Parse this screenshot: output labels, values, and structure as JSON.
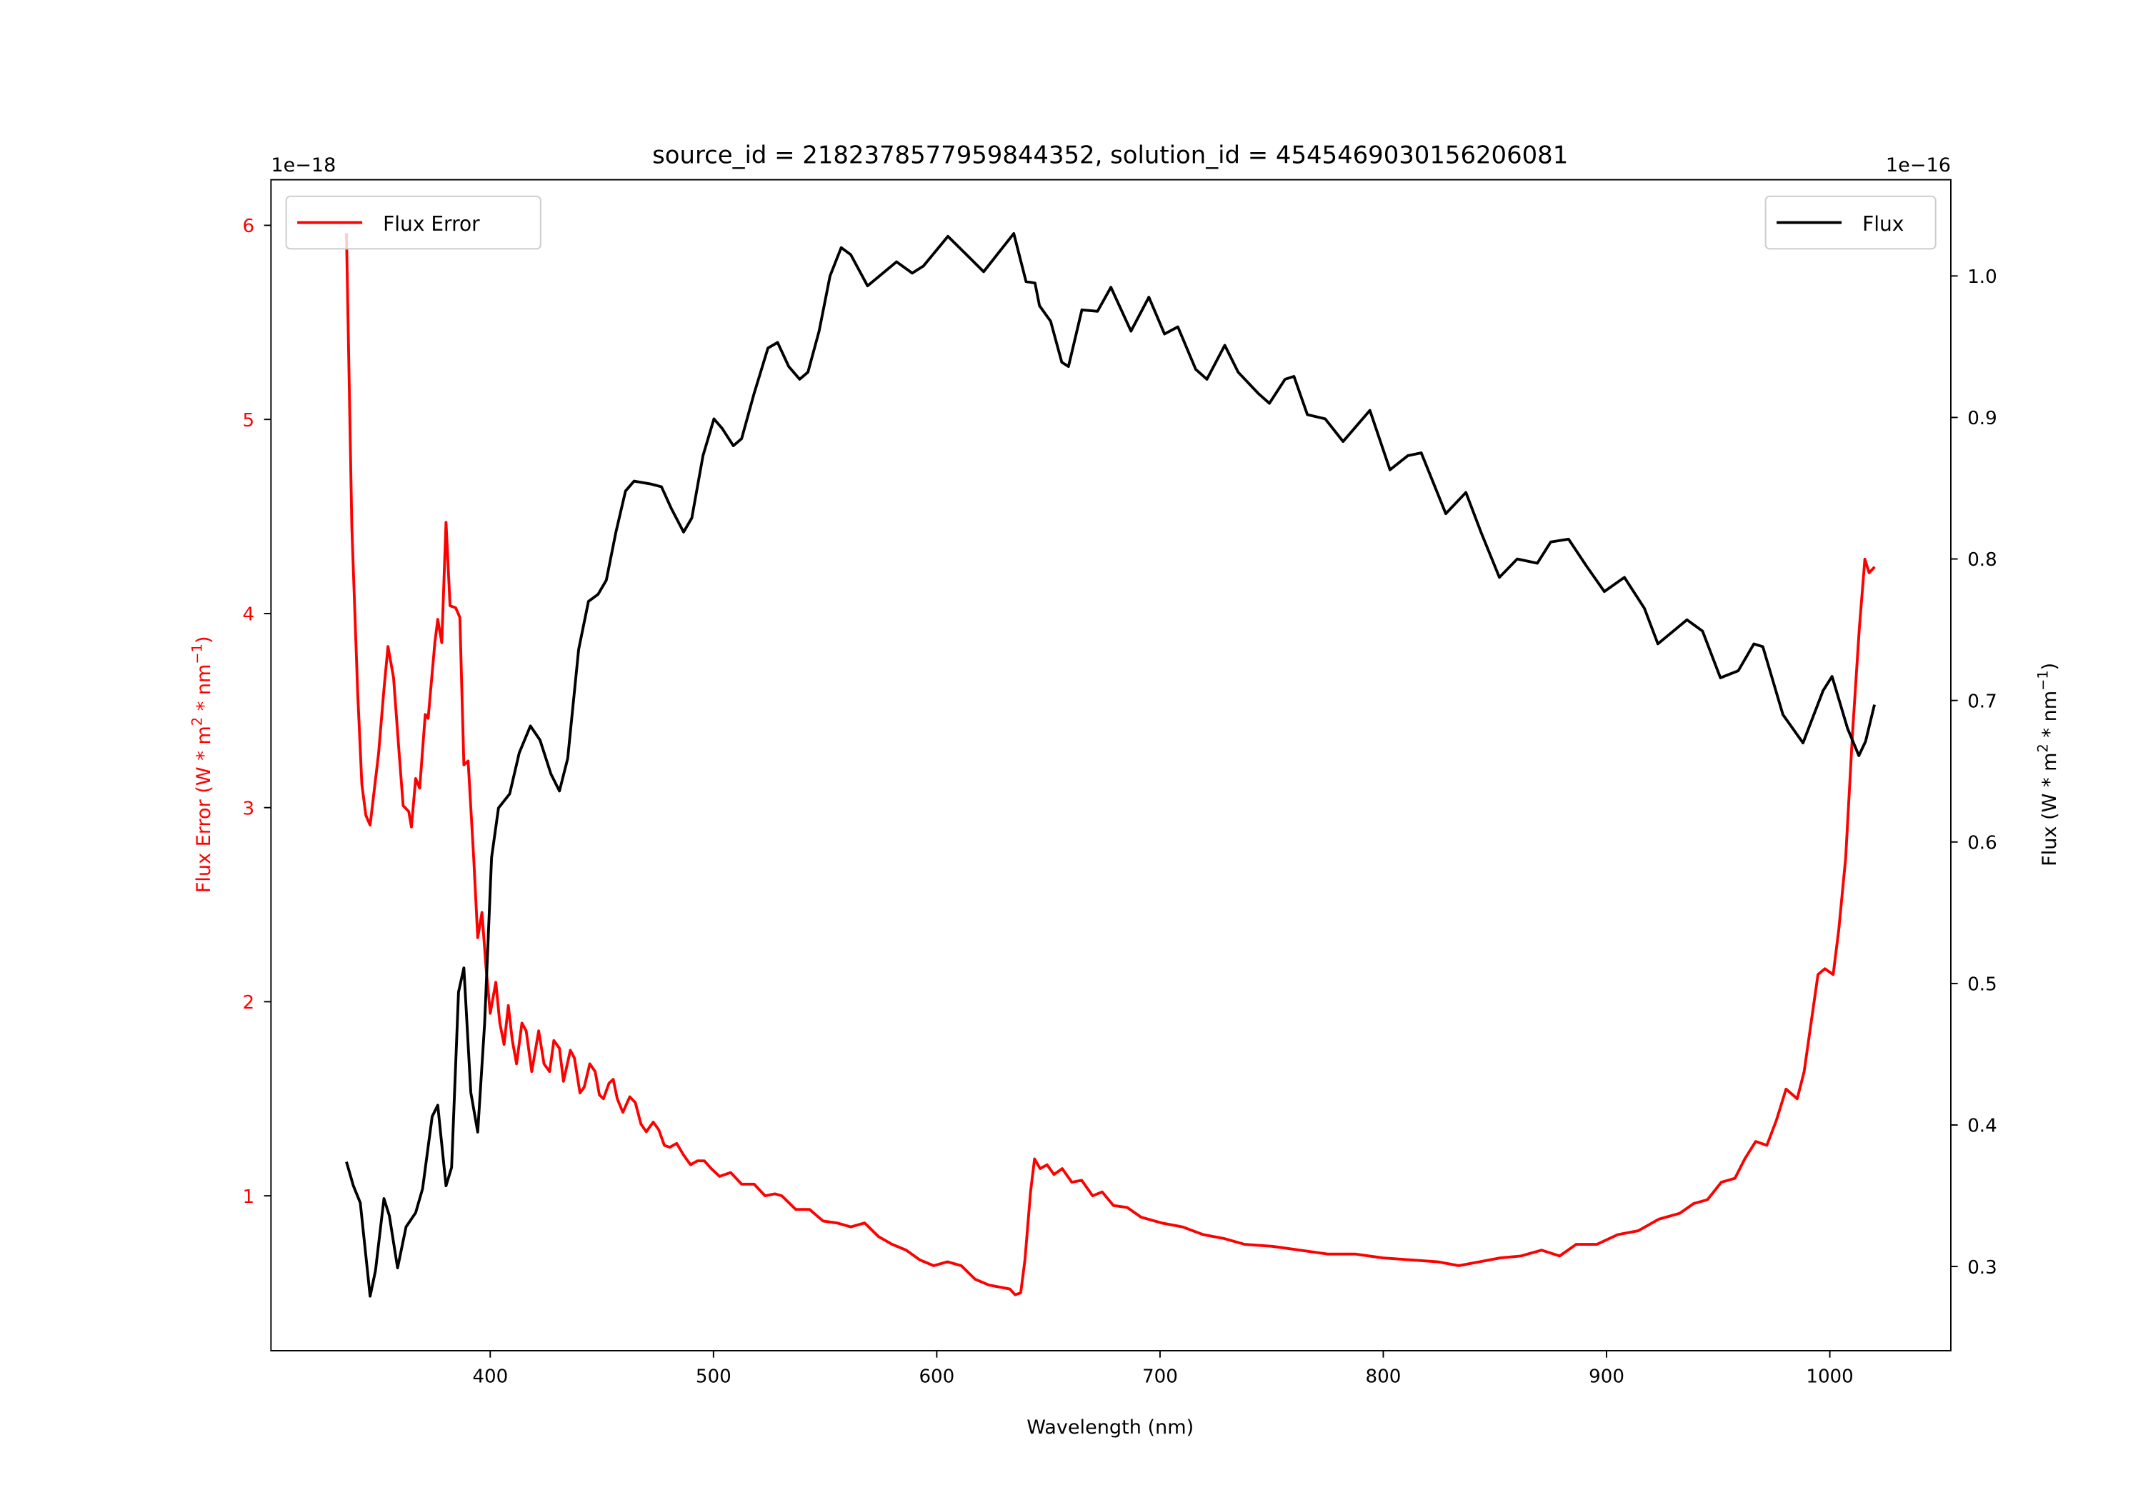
{
  "chart_data": {
    "type": "line",
    "title": "source_id = 2182378577959844352, solution_id = 4545469030156206081",
    "xlabel": "Wavelength (nm)",
    "ylabel_left": "Flux Error (W * m^2 * nm^-1)",
    "ylabel_right": "Flux (W * m^2 * nm^-1)",
    "left_offset_text": "1e−18",
    "right_offset_text": "1e−16",
    "xlim": [
      301.8,
      1054.2
    ],
    "ylim_left": [
      0.202,
      6.235
    ],
    "ylim_right": [
      0.2405,
      1.068
    ],
    "xticks": [
      400,
      500,
      600,
      700,
      800,
      900,
      1000
    ],
    "yticks_left": [
      1,
      2,
      3,
      4,
      5,
      6
    ],
    "yticks_right": [
      0.3,
      0.4,
      0.5,
      0.6,
      0.7,
      0.8,
      0.9,
      1.0
    ],
    "grid": false,
    "legend_left": {
      "label": "Flux Error",
      "placement": "upper-left"
    },
    "legend_right": {
      "label": "Flux",
      "placement": "upper-right"
    },
    "colors": {
      "flux_error": "#ff0000",
      "flux": "#000000"
    },
    "series": [
      {
        "name": "Flux Error",
        "axis": "left",
        "unit_scale": "1e-18",
        "x": [
          335.6,
          338,
          340.6,
          342.5,
          344.3,
          346.2,
          350,
          352.4,
          354.2,
          356.7,
          359.2,
          361,
          363.5,
          364.7,
          366.6,
          368.4,
          370.9,
          372.2,
          375.2,
          376.5,
          378.3,
          380.2,
          382,
          384.5,
          386.4,
          388.2,
          390.1,
          392.6,
          394.4,
          396.3,
          398.1,
          400,
          402.5,
          404.3,
          406.2,
          408.1,
          409.9,
          411.8,
          414.2,
          416.1,
          418.6,
          421.7,
          424.1,
          426.6,
          428.5,
          431,
          432.8,
          435.9,
          437.7,
          440.2,
          442.1,
          444.6,
          447,
          448.9,
          450.7,
          453.2,
          455.1,
          456.9,
          459.4,
          462.5,
          465,
          467.5,
          469.9,
          473,
          475.5,
          478,
          480.4,
          483.5,
          486.6,
          489.7,
          492.8,
          495.9,
          499,
          502.7,
          507.7,
          512.6,
          518.2,
          523.1,
          527.5,
          530.6,
          536.8,
          543,
          549.1,
          555.3,
          561.5,
          567.7,
          573.9,
          580,
          586.3,
          592.4,
          598.6,
          604.8,
          611,
          617.2,
          623.4,
          632.7,
          635.1,
          637.6,
          639.5,
          642,
          643.8,
          646.3,
          649.4,
          652.5,
          656.2,
          660.5,
          664.9,
          669.8,
          674.1,
          679.1,
          685.3,
          691.5,
          700.7,
          710,
          719.3,
          728.6,
          737.9,
          750.2,
          762.6,
          775,
          787.4,
          799.8,
          812.1,
          824.5,
          833.8,
          843.1,
          852.4,
          861.6,
          870.9,
          879,
          886.4,
          895.7,
          905,
          914.2,
          923.5,
          932.8,
          939,
          945.2,
          951.4,
          957.5,
          961.9,
          966.8,
          971.8,
          976.1,
          980.4,
          985.4,
          988.5,
          991.6,
          994.7,
          997.8,
          1001.5,
          1004,
          1007.1,
          1010.2,
          1013.2,
          1015.7,
          1017.6,
          1020.1
        ],
        "y": [
          5.96,
          4.45,
          3.6,
          3.12,
          2.96,
          2.91,
          3.28,
          3.61,
          3.83,
          3.67,
          3.28,
          3.01,
          2.98,
          2.9,
          3.15,
          3.1,
          3.48,
          3.46,
          3.85,
          3.97,
          3.85,
          4.47,
          4.04,
          4.03,
          3.98,
          3.22,
          3.24,
          2.74,
          2.33,
          2.46,
          2.18,
          1.94,
          2.1,
          1.89,
          1.78,
          1.98,
          1.8,
          1.68,
          1.89,
          1.85,
          1.64,
          1.85,
          1.68,
          1.64,
          1.8,
          1.76,
          1.59,
          1.75,
          1.71,
          1.53,
          1.56,
          1.68,
          1.64,
          1.52,
          1.5,
          1.58,
          1.6,
          1.5,
          1.43,
          1.51,
          1.48,
          1.37,
          1.33,
          1.38,
          1.34,
          1.26,
          1.25,
          1.27,
          1.21,
          1.16,
          1.18,
          1.18,
          1.14,
          1.1,
          1.12,
          1.06,
          1.06,
          1.0,
          1.01,
          1.0,
          0.93,
          0.93,
          0.87,
          0.86,
          0.84,
          0.86,
          0.79,
          0.75,
          0.72,
          0.67,
          0.64,
          0.66,
          0.64,
          0.57,
          0.54,
          0.52,
          0.49,
          0.5,
          0.67,
          1.02,
          1.19,
          1.14,
          1.16,
          1.11,
          1.14,
          1.07,
          1.08,
          1.0,
          1.02,
          0.95,
          0.94,
          0.89,
          0.86,
          0.84,
          0.8,
          0.78,
          0.75,
          0.74,
          0.72,
          0.7,
          0.7,
          0.68,
          0.67,
          0.66,
          0.64,
          0.66,
          0.68,
          0.69,
          0.72,
          0.69,
          0.75,
          0.75,
          0.8,
          0.82,
          0.88,
          0.91,
          0.96,
          0.98,
          1.07,
          1.09,
          1.19,
          1.28,
          1.26,
          1.39,
          1.55,
          1.5,
          1.64,
          1.89,
          2.14,
          2.17,
          2.14,
          2.37,
          2.74,
          3.39,
          3.92,
          4.28,
          4.21,
          4.24
        ]
      },
      {
        "name": "Flux",
        "axis": "right",
        "unit_scale": "1e-16",
        "x": [
          335.6,
          338.7,
          341.8,
          346.2,
          348.6,
          352.4,
          354.8,
          358.5,
          362.3,
          366.6,
          369.7,
          374,
          376.5,
          380.2,
          382.7,
          385.8,
          388.2,
          391.3,
          394.4,
          397.5,
          400.6,
          403.7,
          408.7,
          413,
          418,
          422.3,
          427.2,
          431,
          434.7,
          439.6,
          444,
          448.3,
          452,
          456.3,
          460.6,
          464.4,
          471.8,
          476.7,
          481,
          486.6,
          490.3,
          495.3,
          500.2,
          504,
          508.9,
          512.6,
          518.2,
          524.4,
          528.7,
          533.7,
          538.6,
          542.3,
          547.3,
          552.2,
          557.2,
          561.5,
          569,
          582,
          589,
          594,
          605,
          614,
          621,
          634.5,
          640,
          644,
          646,
          651,
          656,
          659,
          665,
          672,
          678,
          687,
          695,
          702,
          708,
          716,
          721,
          729,
          735,
          744,
          749,
          756,
          760,
          766,
          774,
          782,
          794,
          803,
          811,
          817,
          828,
          837,
          844,
          852,
          860,
          869,
          875,
          883,
          891,
          899,
          908,
          917,
          923,
          936,
          943,
          951,
          959,
          966,
          970,
          979,
          988,
          997,
          1001,
          1008,
          1013,
          1016,
          1020
        ],
        "y": [
          0.374,
          0.357,
          0.345,
          0.279,
          0.297,
          0.348,
          0.336,
          0.299,
          0.328,
          0.338,
          0.355,
          0.406,
          0.414,
          0.357,
          0.37,
          0.494,
          0.511,
          0.423,
          0.395,
          0.472,
          0.589,
          0.624,
          0.634,
          0.663,
          0.682,
          0.672,
          0.648,
          0.636,
          0.659,
          0.736,
          0.77,
          0.775,
          0.785,
          0.819,
          0.848,
          0.855,
          0.853,
          0.851,
          0.836,
          0.819,
          0.829,
          0.873,
          0.899,
          0.892,
          0.88,
          0.885,
          0.917,
          0.949,
          0.953,
          0.936,
          0.927,
          0.932,
          0.961,
          1.0,
          1.02,
          1.015,
          0.993,
          1.01,
          1.002,
          1.007,
          1.028,
          1.014,
          1.003,
          1.03,
          0.996,
          0.995,
          0.979,
          0.968,
          0.939,
          0.936,
          0.976,
          0.975,
          0.992,
          0.961,
          0.985,
          0.959,
          0.964,
          0.934,
          0.927,
          0.951,
          0.932,
          0.917,
          0.91,
          0.927,
          0.929,
          0.902,
          0.899,
          0.883,
          0.905,
          0.863,
          0.873,
          0.875,
          0.832,
          0.847,
          0.818,
          0.787,
          0.8,
          0.797,
          0.812,
          0.814,
          0.795,
          0.777,
          0.787,
          0.765,
          0.74,
          0.757,
          0.749,
          0.716,
          0.721,
          0.74,
          0.738,
          0.69,
          0.67,
          0.707,
          0.717,
          0.68,
          0.661,
          0.671,
          0.697
        ]
      }
    ]
  }
}
